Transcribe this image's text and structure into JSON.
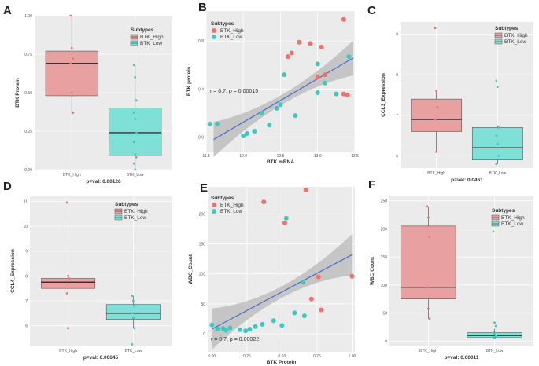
{
  "colors": {
    "panel_bg": "#ebebeb",
    "grid": "#ffffff",
    "high_fill": "#e8a0a0",
    "high_point": "#f0706a",
    "low_fill": "#7fe0d8",
    "low_point": "#3fc7c0",
    "median": "#333333",
    "reg_line": "#4a6fc9",
    "band": "#b8b8b8",
    "text": "#333333",
    "axis_text": "#555555"
  },
  "legend": {
    "title": "Subtypes",
    "high": "BTK_High",
    "low": "BTK_Low"
  },
  "chart_data": [
    {
      "panel": "A",
      "type": "boxplot",
      "ylabel": "BTK Protein",
      "ylim": [
        0,
        1
      ],
      "yticks": [
        "0.00",
        "0.25",
        "0.50",
        "0.75",
        "1.00"
      ],
      "categories": [
        "BTK_High",
        "BTK_Low"
      ],
      "pval": "p=val: 0.00126",
      "groups": [
        {
          "name": "BTK_High",
          "q1": 0.48,
          "median": 0.69,
          "q3": 0.77,
          "wlo": 0.36,
          "whi": 1.0,
          "points": [
            1.0,
            0.79,
            0.72,
            0.69,
            0.5,
            0.37
          ]
        },
        {
          "name": "BTK_Low",
          "q1": 0.09,
          "median": 0.24,
          "q3": 0.4,
          "wlo": 0.0,
          "whi": 0.68,
          "points": [
            0.68,
            0.6,
            0.45,
            0.37,
            0.33,
            0.24,
            0.18,
            0.1,
            0.08,
            0.04,
            0.0
          ]
        }
      ]
    },
    {
      "panel": "B",
      "type": "scatter",
      "xlabel": "BTK mRNA",
      "ylabel": "BTK protein",
      "xlim": [
        11.5,
        13.5
      ],
      "ylim": [
        -0.12,
        1.05
      ],
      "xticks": [
        "11.5",
        "12.0",
        "12.5",
        "13.0",
        "13.5"
      ],
      "yticks": [
        "0.0",
        "0.4",
        "0.8"
      ],
      "annotation": "r = 0.7, p = 0.00015",
      "reg": {
        "x0": 11.6,
        "y0": -0.02,
        "x1": 13.48,
        "y1": 0.66
      },
      "high": [
        [
          12.75,
          0.79
        ],
        [
          12.9,
          0.78
        ],
        [
          13.35,
          0.98
        ],
        [
          13.05,
          0.75
        ],
        [
          12.65,
          0.7
        ],
        [
          12.6,
          0.67
        ],
        [
          13.0,
          0.5
        ],
        [
          13.35,
          0.36
        ],
        [
          13.4,
          0.35
        ],
        [
          13.1,
          0.52
        ]
      ],
      "low": [
        [
          11.55,
          0.11
        ],
        [
          11.65,
          0.11
        ],
        [
          12.0,
          0.01
        ],
        [
          12.05,
          0.03
        ],
        [
          12.15,
          0.05
        ],
        [
          12.25,
          0.2
        ],
        [
          12.35,
          0.1
        ],
        [
          12.45,
          0.24
        ],
        [
          12.5,
          0.27
        ],
        [
          12.55,
          0.52
        ],
        [
          12.7,
          0.18
        ],
        [
          13.0,
          0.61
        ],
        [
          13.0,
          0.37
        ],
        [
          13.1,
          0.45
        ],
        [
          13.25,
          0.36
        ],
        [
          13.42,
          0.67
        ]
      ]
    },
    {
      "panel": "C",
      "type": "boxplot",
      "ylabel": "CCL3_Expression",
      "ylim": [
        5.7,
        9.3
      ],
      "yticks": [
        "6",
        "7",
        "8",
        "9"
      ],
      "categories": [
        "BTK_High",
        "BTK_Low"
      ],
      "pval": "p=val: 0.0461",
      "groups": [
        {
          "name": "BTK_High",
          "q1": 6.6,
          "median": 6.9,
          "q3": 7.4,
          "wlo": 6.1,
          "whi": 7.6,
          "points": [
            9.15,
            7.6,
            7.2,
            6.9,
            6.1
          ]
        },
        {
          "name": "BTK_Low",
          "q1": 5.9,
          "median": 6.2,
          "q3": 6.7,
          "wlo": 5.8,
          "whi": 6.75,
          "points": [
            7.85,
            7.7,
            6.7,
            6.5,
            6.3,
            6.0,
            5.8
          ]
        }
      ]
    },
    {
      "panel": "D",
      "type": "boxplot",
      "ylabel": "CCL4_Expression",
      "ylim": [
        5.2,
        11.2
      ],
      "yticks": [
        "6",
        "7",
        "8",
        "9",
        "10",
        "11"
      ],
      "categories": [
        "BTK_High",
        "BTK_Low"
      ],
      "pval": "p=val: 0.00645",
      "groups": [
        {
          "name": "BTK_High",
          "q1": 7.5,
          "median": 7.75,
          "q3": 7.9,
          "wlo": 7.3,
          "whi": 8.0,
          "points": [
            10.95,
            8.0,
            7.9,
            7.3,
            5.9
          ]
        },
        {
          "name": "BTK_Low",
          "q1": 6.25,
          "median": 6.5,
          "q3": 6.85,
          "wlo": 5.9,
          "whi": 7.2,
          "points": [
            7.2,
            7.0,
            6.8,
            6.5,
            6.3,
            5.9,
            5.25
          ]
        }
      ]
    },
    {
      "panel": "E",
      "type": "scatter",
      "xlabel": "BTK Protein",
      "ylabel": "WBC_Count",
      "xlim": [
        -0.03,
        1.02
      ],
      "ylim": [
        -30,
        245
      ],
      "xticks": [
        "0.00",
        "0.25",
        "0.50",
        "0.75",
        "1.00"
      ],
      "yticks": [
        "0",
        "50",
        "100",
        "150",
        "200"
      ],
      "annotation": "r = 0.7, p = 0.00022",
      "reg": {
        "x0": 0.0,
        "y0": 8,
        "x1": 1.0,
        "y1": 132
      },
      "high": [
        [
          0.37,
          220
        ],
        [
          0.67,
          240
        ],
        [
          0.52,
          185
        ],
        [
          0.76,
          95
        ],
        [
          1.0,
          96
        ],
        [
          0.71,
          58
        ],
        [
          0.78,
          40
        ]
      ],
      "low": [
        [
          0.0,
          15
        ],
        [
          0.04,
          8
        ],
        [
          0.08,
          9
        ],
        [
          0.1,
          6
        ],
        [
          0.13,
          10
        ],
        [
          0.2,
          7
        ],
        [
          0.24,
          5
        ],
        [
          0.27,
          8
        ],
        [
          0.31,
          12
        ],
        [
          0.36,
          16
        ],
        [
          0.44,
          22
        ],
        [
          0.5,
          14
        ],
        [
          0.53,
          193
        ],
        [
          0.59,
          35
        ],
        [
          0.66,
          30
        ],
        [
          0.65,
          86
        ]
      ]
    },
    {
      "panel": "F",
      "type": "boxplot",
      "ylabel": "WBC Count",
      "ylim": [
        -8,
        258
      ],
      "yticks": [
        "0",
        "50",
        "100",
        "150",
        "200",
        "250"
      ],
      "categories": [
        "BTK_High",
        "BTK_Low"
      ],
      "pval": "p=val: 0.00011",
      "groups": [
        {
          "name": "BTK_High",
          "q1": 75,
          "median": 96,
          "q3": 205,
          "wlo": 40,
          "whi": 240,
          "points": [
            240,
            220,
            186,
            96,
            58,
            40
          ]
        },
        {
          "name": "BTK_Low",
          "q1": 7,
          "median": 10,
          "q3": 15,
          "wlo": 5,
          "whi": 22,
          "points": [
            195,
            33,
            27,
            15,
            12,
            9,
            7,
            5
          ]
        }
      ]
    }
  ]
}
